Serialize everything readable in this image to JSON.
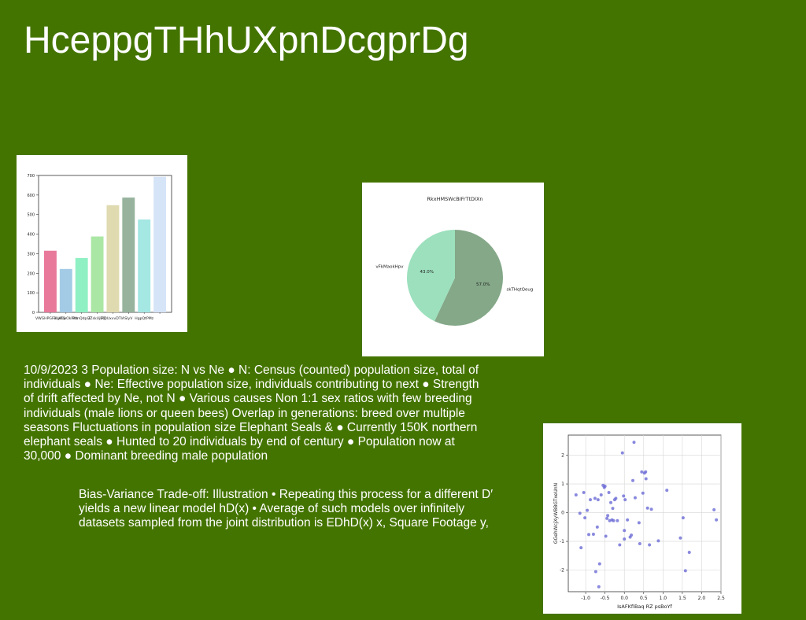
{
  "slide": {
    "title": "HceppgTHhUXpnDcgprDg",
    "paragraph1": "10/9/2023 3 Population size: N vs Ne ● N: Census (counted) population size, total of individuals ● Ne: Effective population size, individuals contributing to next ● Strength of drift affected by Ne, not N ● Various causes  Non 1:1 sex ratios  with few breeding individuals (male lions or queen bees)  Overlap in generations: breed over multiple seasons  Fluctuations in population size Elephant Seals & ● Currently 150K northern elephant seals ● Hunted to 20 individuals by end of century ● Population now at 30,000 ● Dominant breeding male population",
    "paragraph2": "Bias-Variance Trade-off: Illustration • Repeating this process for a different D′ yields a new linear model hD(x) • Average of such models over infinitely datasets sampled from the joint distribution is EDhD(x) x, Square Footage y,"
  },
  "chart_data": [
    {
      "type": "bar",
      "title": "",
      "categories": [
        "VWGHPGFuLyRQ",
        "PUkCwOkRde",
        "PdnQdpIZ",
        "IZskUjBQ",
        "RQUxvvDTlA",
        "SIyV",
        "HgpQtPMz",
        ""
      ],
      "values": [
        315,
        222,
        278,
        388,
        548,
        587,
        475,
        693
      ],
      "colors": [
        "#e8799b",
        "#a4cbe6",
        "#8ff0c4",
        "#aae6a4",
        "#e0dab0",
        "#97b39d",
        "#a4e7e3",
        "#d6e4f8"
      ],
      "ylim": [
        0,
        700
      ],
      "yticks": [
        0,
        100,
        200,
        300,
        400,
        500,
        600,
        700
      ],
      "grid": false
    },
    {
      "type": "pie",
      "title": "RkxHMSWcBIFrTtDIXn",
      "slices": [
        {
          "label": "skTHqtQeug",
          "value": 57.0,
          "pct_label": "57.0%",
          "color": "#84a888"
        },
        {
          "label": "vFkMaokHpv",
          "value": 43.0,
          "pct_label": "43.0%",
          "color": "#9ce0bd"
        }
      ]
    },
    {
      "type": "scatter",
      "title": "",
      "xlabel": "IsAFKfiBaq RZ psBoYf",
      "ylabel": "GGehWcjXyWBBGTxeUnN",
      "xlim": [
        -1.45,
        2.5
      ],
      "ylim": [
        -2.75,
        2.7
      ],
      "xticks": [
        -1.0,
        -0.5,
        0.0,
        0.5,
        1.0,
        1.5,
        2.0,
        2.5
      ],
      "yticks": [
        -2,
        -1,
        0,
        1,
        2
      ],
      "grid": true,
      "color": "#6b6bd6",
      "points": [
        [
          -1.25,
          0.62
        ],
        [
          -1.15,
          -0.02
        ],
        [
          -1.12,
          -1.22
        ],
        [
          -1.05,
          0.7
        ],
        [
          -1.02,
          -0.18
        ],
        [
          -0.96,
          0.08
        ],
        [
          -0.92,
          -0.76
        ],
        [
          -0.88,
          0.45
        ],
        [
          -0.8,
          -0.75
        ],
        [
          -0.76,
          0.5
        ],
        [
          -0.74,
          -2.05
        ],
        [
          -0.7,
          -0.5
        ],
        [
          -0.68,
          0.45
        ],
        [
          -0.66,
          -2.58
        ],
        [
          -0.64,
          -1.78
        ],
        [
          -0.6,
          0.62
        ],
        [
          -0.55,
          0.95
        ],
        [
          -0.52,
          0.88
        ],
        [
          -0.5,
          0.92
        ],
        [
          -0.48,
          -0.82
        ],
        [
          -0.45,
          -0.2
        ],
        [
          -0.43,
          -0.1
        ],
        [
          -0.4,
          0.7
        ],
        [
          -0.38,
          -0.28
        ],
        [
          -0.35,
          0.35
        ],
        [
          -0.32,
          -0.25
        ],
        [
          -0.3,
          0.15
        ],
        [
          -0.28,
          -0.28
        ],
        [
          -0.25,
          0.45
        ],
        [
          -0.22,
          0.5
        ],
        [
          -0.18,
          -0.28
        ],
        [
          -0.12,
          -1.12
        ],
        [
          -0.05,
          2.08
        ],
        [
          -0.02,
          0.58
        ],
        [
          0.0,
          -0.92
        ],
        [
          0.0,
          -0.62
        ],
        [
          0.02,
          0.45
        ],
        [
          0.08,
          -0.25
        ],
        [
          0.15,
          -0.85
        ],
        [
          0.18,
          -0.78
        ],
        [
          0.22,
          1.12
        ],
        [
          0.25,
          2.45
        ],
        [
          0.28,
          0.52
        ],
        [
          0.38,
          -0.35
        ],
        [
          0.4,
          -1.08
        ],
        [
          0.45,
          1.42
        ],
        [
          0.48,
          0.68
        ],
        [
          0.52,
          1.38
        ],
        [
          0.55,
          1.42
        ],
        [
          0.56,
          1.18
        ],
        [
          0.6,
          0.16
        ],
        [
          0.65,
          -1.12
        ],
        [
          0.7,
          0.12
        ],
        [
          0.88,
          -0.98
        ],
        [
          1.1,
          0.78
        ],
        [
          1.45,
          -0.88
        ],
        [
          1.52,
          -0.18
        ],
        [
          1.58,
          -2.02
        ],
        [
          1.68,
          -1.38
        ],
        [
          2.32,
          0.1
        ],
        [
          2.38,
          -0.25
        ]
      ]
    }
  ]
}
